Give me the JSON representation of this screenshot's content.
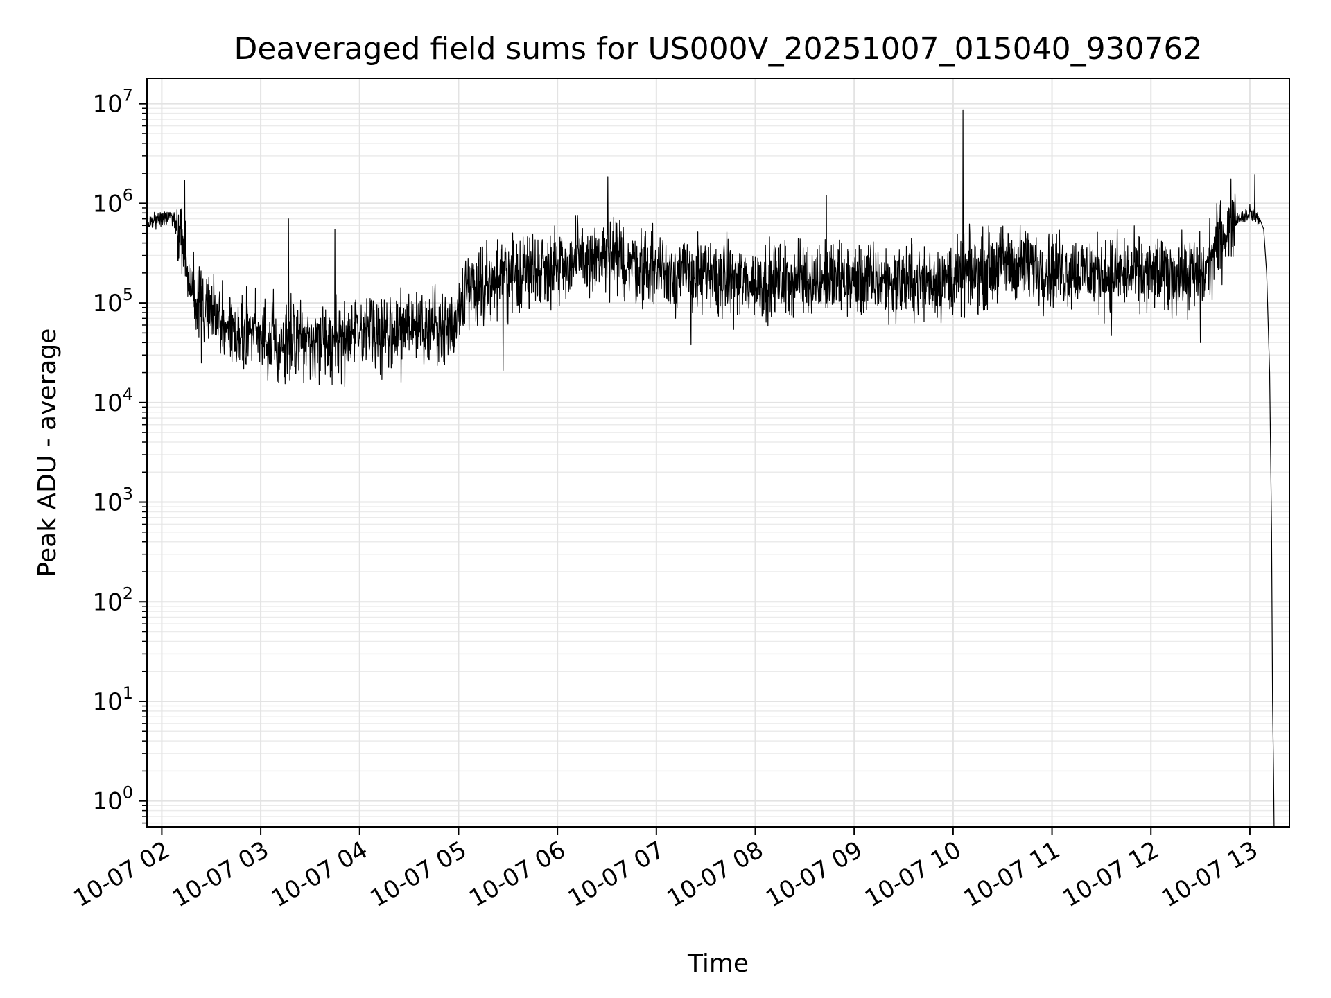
{
  "chart_data": {
    "type": "line",
    "title": "Deaveraged field sums for US000V_20251007_015040_930762",
    "xlabel": "Time",
    "ylabel": "Peak ADU - average",
    "yscale": "log",
    "ylim": [
      0.55,
      18000000
    ],
    "xlim_hours": [
      1.85,
      13.4
    ],
    "grid": true,
    "legend": "none",
    "x_ticks": [
      {
        "hour": 2,
        "label": "10-07 02"
      },
      {
        "hour": 3,
        "label": "10-07 03"
      },
      {
        "hour": 4,
        "label": "10-07 04"
      },
      {
        "hour": 5,
        "label": "10-07 05"
      },
      {
        "hour": 6,
        "label": "10-07 06"
      },
      {
        "hour": 7,
        "label": "10-07 07"
      },
      {
        "hour": 8,
        "label": "10-07 08"
      },
      {
        "hour": 9,
        "label": "10-07 09"
      },
      {
        "hour": 10,
        "label": "10-07 10"
      },
      {
        "hour": 11,
        "label": "10-07 11"
      },
      {
        "hour": 12,
        "label": "10-07 12"
      },
      {
        "hour": 13,
        "label": "10-07 13"
      }
    ],
    "y_ticks": [
      {
        "value": 1,
        "base": "10",
        "exp": "0"
      },
      {
        "value": 10,
        "base": "10",
        "exp": "1"
      },
      {
        "value": 100,
        "base": "10",
        "exp": "2"
      },
      {
        "value": 1000,
        "base": "10",
        "exp": "3"
      },
      {
        "value": 10000,
        "base": "10",
        "exp": "4"
      },
      {
        "value": 100000,
        "base": "10",
        "exp": "5"
      },
      {
        "value": 1000000,
        "base": "10",
        "exp": "6"
      },
      {
        "value": 10000000,
        "base": "10",
        "exp": "7"
      }
    ],
    "series": [
      {
        "name": "deaveraged field sums",
        "color": "#000000",
        "noise_amplitude_decades": 0.55,
        "samples_per_hour": 320,
        "trend": [
          {
            "hour": 1.85,
            "value": 650000
          },
          {
            "hour": 2.1,
            "value": 750000
          },
          {
            "hour": 2.2,
            "value": 500000
          },
          {
            "hour": 2.3,
            "value": 120000
          },
          {
            "hour": 2.6,
            "value": 60000
          },
          {
            "hour": 3.0,
            "value": 45000
          },
          {
            "hour": 3.5,
            "value": 40000
          },
          {
            "hour": 4.0,
            "value": 45000
          },
          {
            "hour": 4.5,
            "value": 55000
          },
          {
            "hour": 4.95,
            "value": 60000
          },
          {
            "hour": 5.1,
            "value": 150000
          },
          {
            "hour": 5.5,
            "value": 180000
          },
          {
            "hour": 6.0,
            "value": 250000
          },
          {
            "hour": 6.5,
            "value": 280000
          },
          {
            "hour": 7.0,
            "value": 220000
          },
          {
            "hour": 7.5,
            "value": 180000
          },
          {
            "hour": 8.0,
            "value": 160000
          },
          {
            "hour": 8.5,
            "value": 180000
          },
          {
            "hour": 9.0,
            "value": 170000
          },
          {
            "hour": 9.5,
            "value": 160000
          },
          {
            "hour": 10.0,
            "value": 170000
          },
          {
            "hour": 10.5,
            "value": 250000
          },
          {
            "hour": 11.0,
            "value": 220000
          },
          {
            "hour": 11.5,
            "value": 200000
          },
          {
            "hour": 12.0,
            "value": 190000
          },
          {
            "hour": 12.3,
            "value": 190000
          },
          {
            "hour": 12.55,
            "value": 200000
          },
          {
            "hour": 12.7,
            "value": 450000
          },
          {
            "hour": 12.85,
            "value": 700000
          },
          {
            "hour": 13.0,
            "value": 800000
          },
          {
            "hour": 13.1,
            "value": 700000
          }
        ],
        "spikes": [
          {
            "hour": 2.23,
            "value": 1700000
          },
          {
            "hour": 3.28,
            "value": 700000
          },
          {
            "hour": 3.75,
            "value": 550000
          },
          {
            "hour": 6.51,
            "value": 1850000
          },
          {
            "hour": 8.72,
            "value": 1200000
          },
          {
            "hour": 10.1,
            "value": 8700000
          },
          {
            "hour": 13.05,
            "value": 1950000
          }
        ],
        "dips": [
          {
            "hour": 2.4,
            "value": 25000
          },
          {
            "hour": 3.18,
            "value": 16000
          },
          {
            "hour": 3.85,
            "value": 14500
          },
          {
            "hour": 4.42,
            "value": 16000
          },
          {
            "hour": 5.45,
            "value": 21000
          },
          {
            "hour": 7.35,
            "value": 38000
          },
          {
            "hour": 11.6,
            "value": 47000
          },
          {
            "hour": 12.5,
            "value": 40000
          }
        ],
        "falloff": [
          {
            "hour": 13.1,
            "value": 700000
          },
          {
            "hour": 13.14,
            "value": 550000
          },
          {
            "hour": 13.17,
            "value": 200000
          },
          {
            "hour": 13.2,
            "value": 20000
          },
          {
            "hour": 13.22,
            "value": 500
          },
          {
            "hour": 13.23,
            "value": 10
          },
          {
            "hour": 13.24,
            "value": 1.8
          },
          {
            "hour": 13.245,
            "value": 0.55
          }
        ]
      }
    ]
  }
}
